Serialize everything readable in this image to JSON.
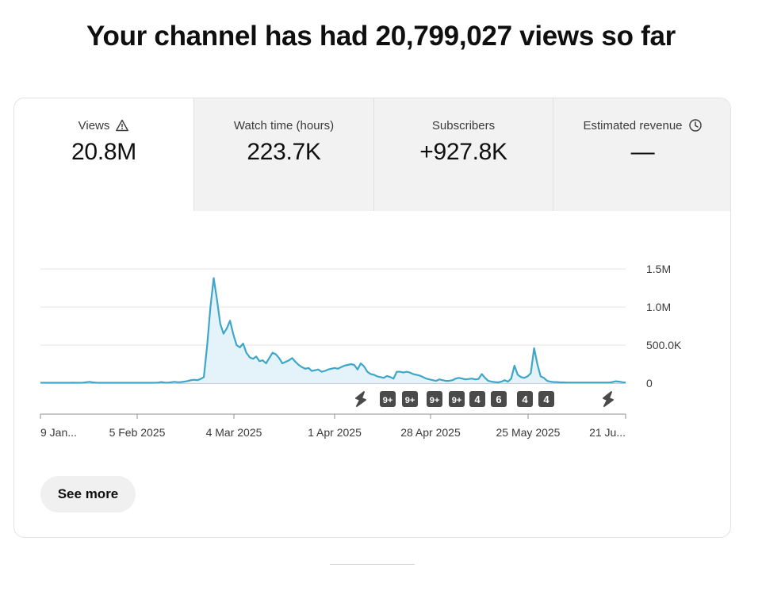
{
  "headline": "Your channel has had 20,799,027 views so far",
  "tabs": [
    {
      "label": "Views",
      "value": "20.8M",
      "icon": "warning-icon",
      "active": true
    },
    {
      "label": "Watch time (hours)",
      "value": "223.7K",
      "icon": "",
      "active": false
    },
    {
      "label": "Subscribers",
      "value": "+927.8K",
      "icon": "",
      "active": false
    },
    {
      "label": "Estimated revenue",
      "value": "—",
      "icon": "clock-icon",
      "active": false
    }
  ],
  "see_more_label": "See more",
  "colors": {
    "line": "#3ea6c9",
    "fill": "#e4f3f9",
    "grid": "#e5e5e5",
    "axis": "#909090",
    "marker": "#4a4a4a"
  },
  "chart_data": {
    "type": "area",
    "ylim": [
      0,
      1500000
    ],
    "yticks": [
      {
        "value": 1500000,
        "label": "1.5M"
      },
      {
        "value": 1000000,
        "label": "1.0M"
      },
      {
        "value": 500000,
        "label": "500.0K"
      },
      {
        "value": 0,
        "label": "0"
      }
    ],
    "xticks": [
      "9 Jan...",
      "5 Feb 2025",
      "4 Mar 2025",
      "1 Apr 2025",
      "28 Apr 2025",
      "25 May 2025",
      "21 Ju..."
    ],
    "grid": true,
    "series": [
      {
        "values": [
          5000,
          5000,
          5000,
          5000,
          5000,
          5000,
          5000,
          5000,
          5000,
          5000,
          6000,
          5000,
          5000,
          6000,
          12000,
          18000,
          10000,
          6000,
          5000,
          5000,
          5000,
          5000,
          5000,
          5000,
          5000,
          5000,
          5000,
          5000,
          5000,
          5000,
          5000,
          5000,
          5000,
          5000,
          5000,
          5000,
          8000,
          15000,
          8000,
          6000,
          12000,
          18000,
          12000,
          15000,
          20000,
          28000,
          40000,
          45000,
          40000,
          55000,
          80000,
          500000,
          1000000,
          1380000,
          1100000,
          780000,
          650000,
          720000,
          820000,
          640000,
          500000,
          470000,
          520000,
          400000,
          340000,
          320000,
          350000,
          290000,
          300000,
          260000,
          330000,
          400000,
          380000,
          330000,
          260000,
          280000,
          300000,
          330000,
          280000,
          240000,
          210000,
          190000,
          200000,
          160000,
          170000,
          180000,
          150000,
          160000,
          180000,
          190000,
          200000,
          190000,
          210000,
          230000,
          240000,
          250000,
          240000,
          180000,
          260000,
          220000,
          150000,
          120000,
          110000,
          90000,
          80000,
          70000,
          95000,
          80000,
          60000,
          150000,
          150000,
          140000,
          150000,
          140000,
          120000,
          110000,
          100000,
          80000,
          60000,
          50000,
          40000,
          30000,
          50000,
          40000,
          30000,
          30000,
          40000,
          60000,
          70000,
          60000,
          50000,
          55000,
          60000,
          50000,
          55000,
          120000,
          70000,
          30000,
          20000,
          15000,
          10000,
          20000,
          40000,
          20000,
          60000,
          230000,
          110000,
          80000,
          70000,
          90000,
          130000,
          460000,
          250000,
          90000,
          70000,
          30000,
          20000,
          15000,
          15000,
          10000,
          10000,
          8000,
          8000,
          8000,
          8000,
          8000,
          8000,
          8000,
          8000,
          8000,
          8000,
          8000,
          8000,
          8000,
          8000,
          15000,
          25000,
          20000,
          12000,
          8000
        ]
      }
    ],
    "markers": [
      "shorts",
      "9+",
      "9+",
      "9+",
      "9+",
      "4",
      "6",
      "4",
      "4",
      "shorts"
    ]
  }
}
